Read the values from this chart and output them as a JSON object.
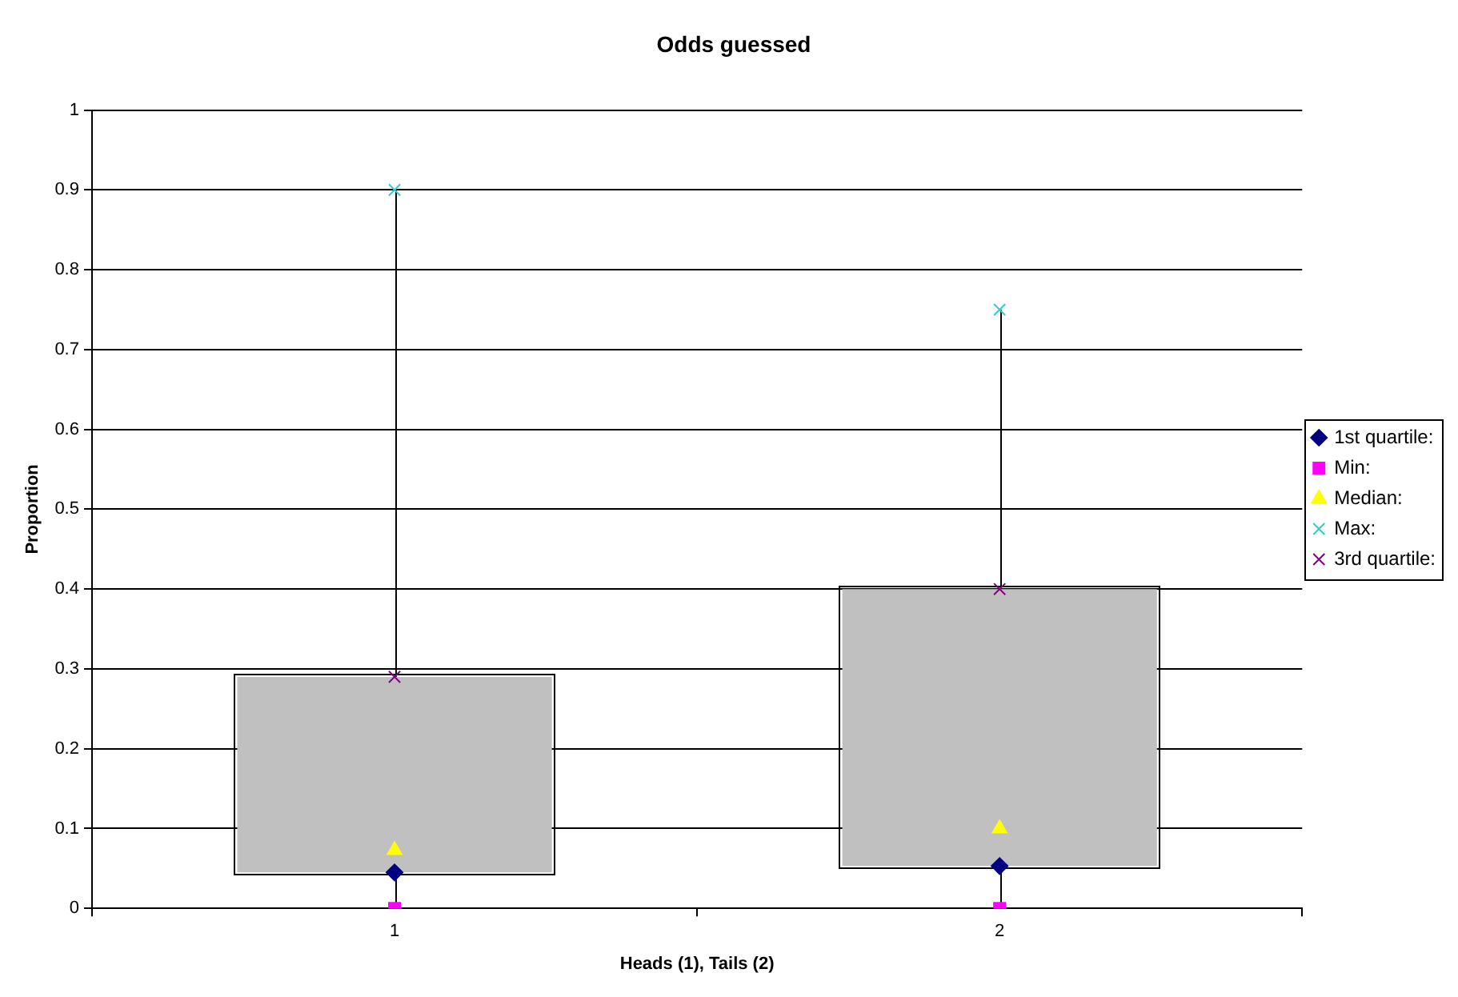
{
  "chart_data": {
    "type": "box",
    "title": "Odds guessed",
    "xlabel": "Heads (1), Tails (2)",
    "ylabel": "Proportion",
    "categories": [
      "1",
      "2"
    ],
    "boxes": [
      {
        "low": 0,
        "q1": 0.045,
        "q3": 0.29,
        "high": 0.9
      },
      {
        "low": 0,
        "q1": 0.053,
        "q3": 0.4,
        "high": 0.75
      }
    ],
    "color": "#c0c0c0",
    "series": [
      {
        "name": "1st quartile:",
        "type": "scatter",
        "marker": "diamond",
        "color": "#000080",
        "x": [
          "1",
          "2"
        ],
        "values": [
          0.045,
          0.053
        ]
      },
      {
        "name": "Min:",
        "type": "scatter",
        "marker": "square",
        "color": "#ff00ff",
        "x": [
          "1",
          "2"
        ],
        "values": [
          0,
          0
        ]
      },
      {
        "name": "Median:",
        "type": "scatter",
        "marker": "triangle",
        "color": "#ffff00",
        "x": [
          "1",
          "2"
        ],
        "values": [
          0.073,
          0.1
        ]
      },
      {
        "name": "Max:",
        "type": "scatter",
        "marker": "cross",
        "color": "#33cccc",
        "x": [
          "1",
          "2"
        ],
        "values": [
          0.9,
          0.75
        ]
      },
      {
        "name": "3rd quartile:",
        "type": "scatter",
        "marker": "cross",
        "color": "#800080",
        "x": [
          "1",
          "2"
        ],
        "values": [
          0.29,
          0.4
        ]
      }
    ],
    "ylim": [
      0,
      1
    ],
    "yticks": [
      0,
      0.1,
      0.2,
      0.3,
      0.4,
      0.5,
      0.6,
      0.7,
      0.8,
      0.9,
      1
    ],
    "grid": "y",
    "legend": "right"
  }
}
